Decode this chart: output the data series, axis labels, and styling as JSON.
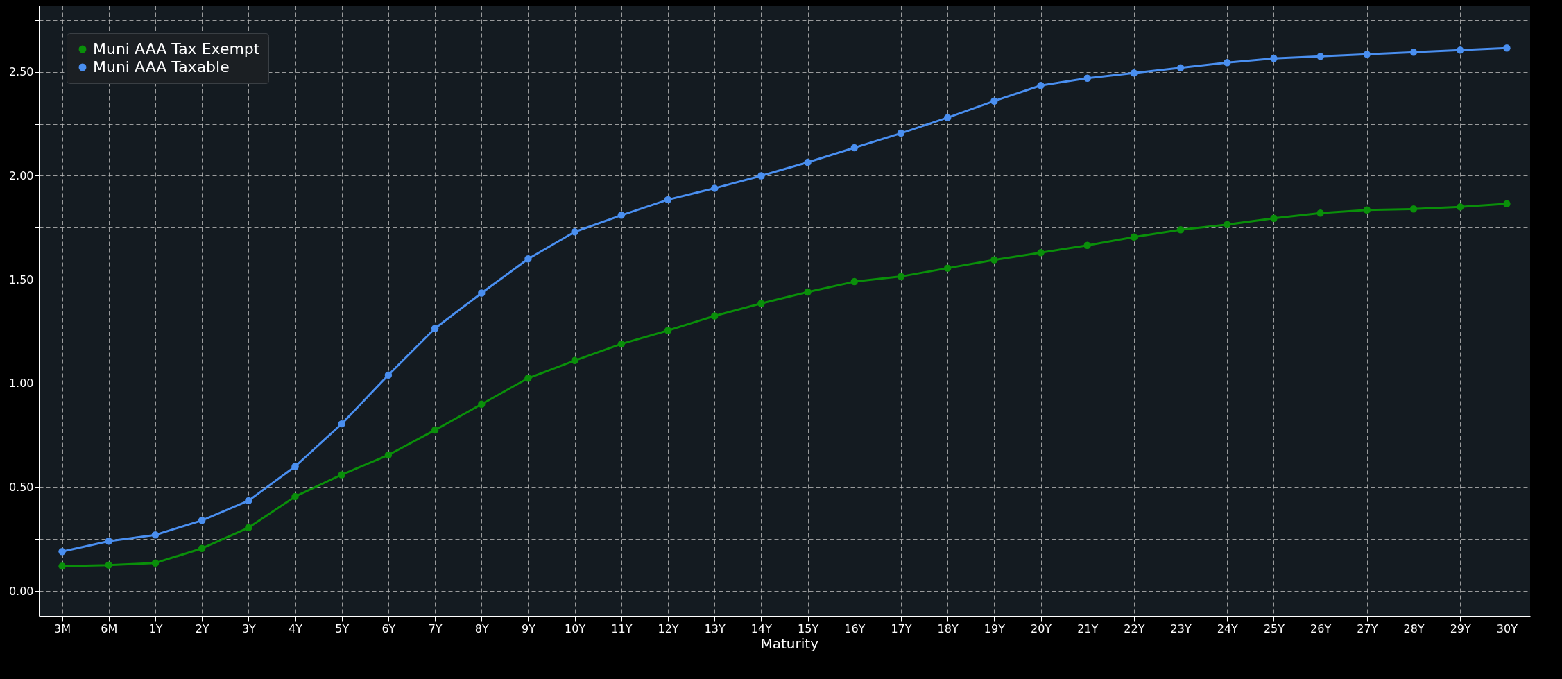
{
  "chart_data": {
    "type": "line",
    "xlabel": "Maturity",
    "categories": [
      "3M",
      "6M",
      "1Y",
      "2Y",
      "3Y",
      "4Y",
      "5Y",
      "6Y",
      "7Y",
      "8Y",
      "9Y",
      "10Y",
      "11Y",
      "12Y",
      "13Y",
      "14Y",
      "15Y",
      "16Y",
      "17Y",
      "18Y",
      "19Y",
      "20Y",
      "21Y",
      "22Y",
      "23Y",
      "24Y",
      "25Y",
      "26Y",
      "27Y",
      "28Y",
      "29Y",
      "30Y"
    ],
    "series": [
      {
        "name": "Muni AAA Tax Exempt",
        "color": "#0a8f0a",
        "values": [
          0.12,
          0.125,
          0.135,
          0.205,
          0.305,
          0.455,
          0.56,
          0.655,
          0.775,
          0.9,
          1.025,
          1.11,
          1.19,
          1.255,
          1.325,
          1.385,
          1.44,
          1.49,
          1.515,
          1.555,
          1.595,
          1.63,
          1.665,
          1.705,
          1.74,
          1.765,
          1.795,
          1.82,
          1.835,
          1.84,
          1.85,
          1.865
        ]
      },
      {
        "name": "Muni AAA Taxable",
        "color": "#4a8ff0",
        "values": [
          0.19,
          0.24,
          0.27,
          0.34,
          0.435,
          0.6,
          0.805,
          1.04,
          1.265,
          1.435,
          1.6,
          1.73,
          1.81,
          1.885,
          1.94,
          2.0,
          2.065,
          2.135,
          2.205,
          2.28,
          2.36,
          2.435,
          2.47,
          2.495,
          2.52,
          2.545,
          2.565,
          2.575,
          2.585,
          2.595,
          2.605,
          2.615
        ]
      }
    ],
    "ylim": [
      -0.12,
      2.82
    ],
    "yticks": [
      {
        "value": 0,
        "label": "0.00"
      },
      {
        "value": 0.25,
        "label": null
      },
      {
        "value": 0.5,
        "label": "0.50"
      },
      {
        "value": 0.75,
        "label": null
      },
      {
        "value": 1,
        "label": "1.00"
      },
      {
        "value": 1.25,
        "label": null
      },
      {
        "value": 1.5,
        "label": "1.50"
      },
      {
        "value": 1.75,
        "label": null
      },
      {
        "value": 2,
        "label": "2.00"
      },
      {
        "value": 2.25,
        "label": null
      },
      {
        "value": 2.5,
        "label": "2.50"
      },
      {
        "value": 2.75,
        "label": null
      }
    ],
    "grid": true,
    "legend": "top left",
    "marker": "circle",
    "line_style": "solid"
  }
}
